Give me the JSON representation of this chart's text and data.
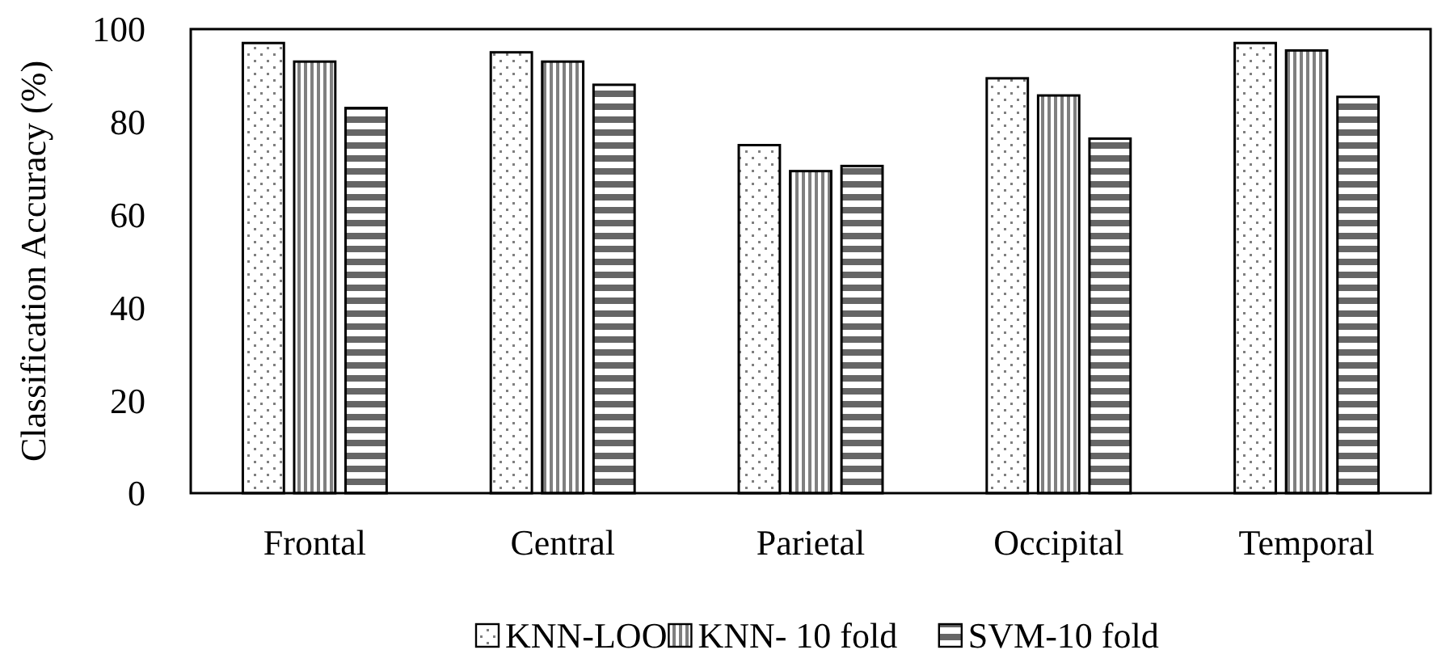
{
  "chart_data": {
    "type": "bar",
    "ylabel": "Classification Accuracy (%)",
    "categories": [
      "Frontal",
      "Central",
      "Parietal",
      "Occipital",
      "Temporal"
    ],
    "series": [
      {
        "name": "KNN-LOO",
        "color": "#000000",
        "values": [
          97,
          95,
          75,
          89.4,
          97
        ]
      },
      {
        "name": "KNN- 10 fold",
        "color": "#000000",
        "values": [
          93,
          93,
          69.4,
          85.7,
          95.4
        ]
      },
      {
        "name": "SVM-10 fold",
        "color": "#000000",
        "values": [
          83,
          88,
          70.5,
          76.4,
          85.4
        ]
      }
    ],
    "ylim": [
      0,
      100
    ],
    "yticks": [
      0,
      20,
      40,
      60,
      80,
      100
    ],
    "grid": false,
    "legend": "bottom"
  }
}
